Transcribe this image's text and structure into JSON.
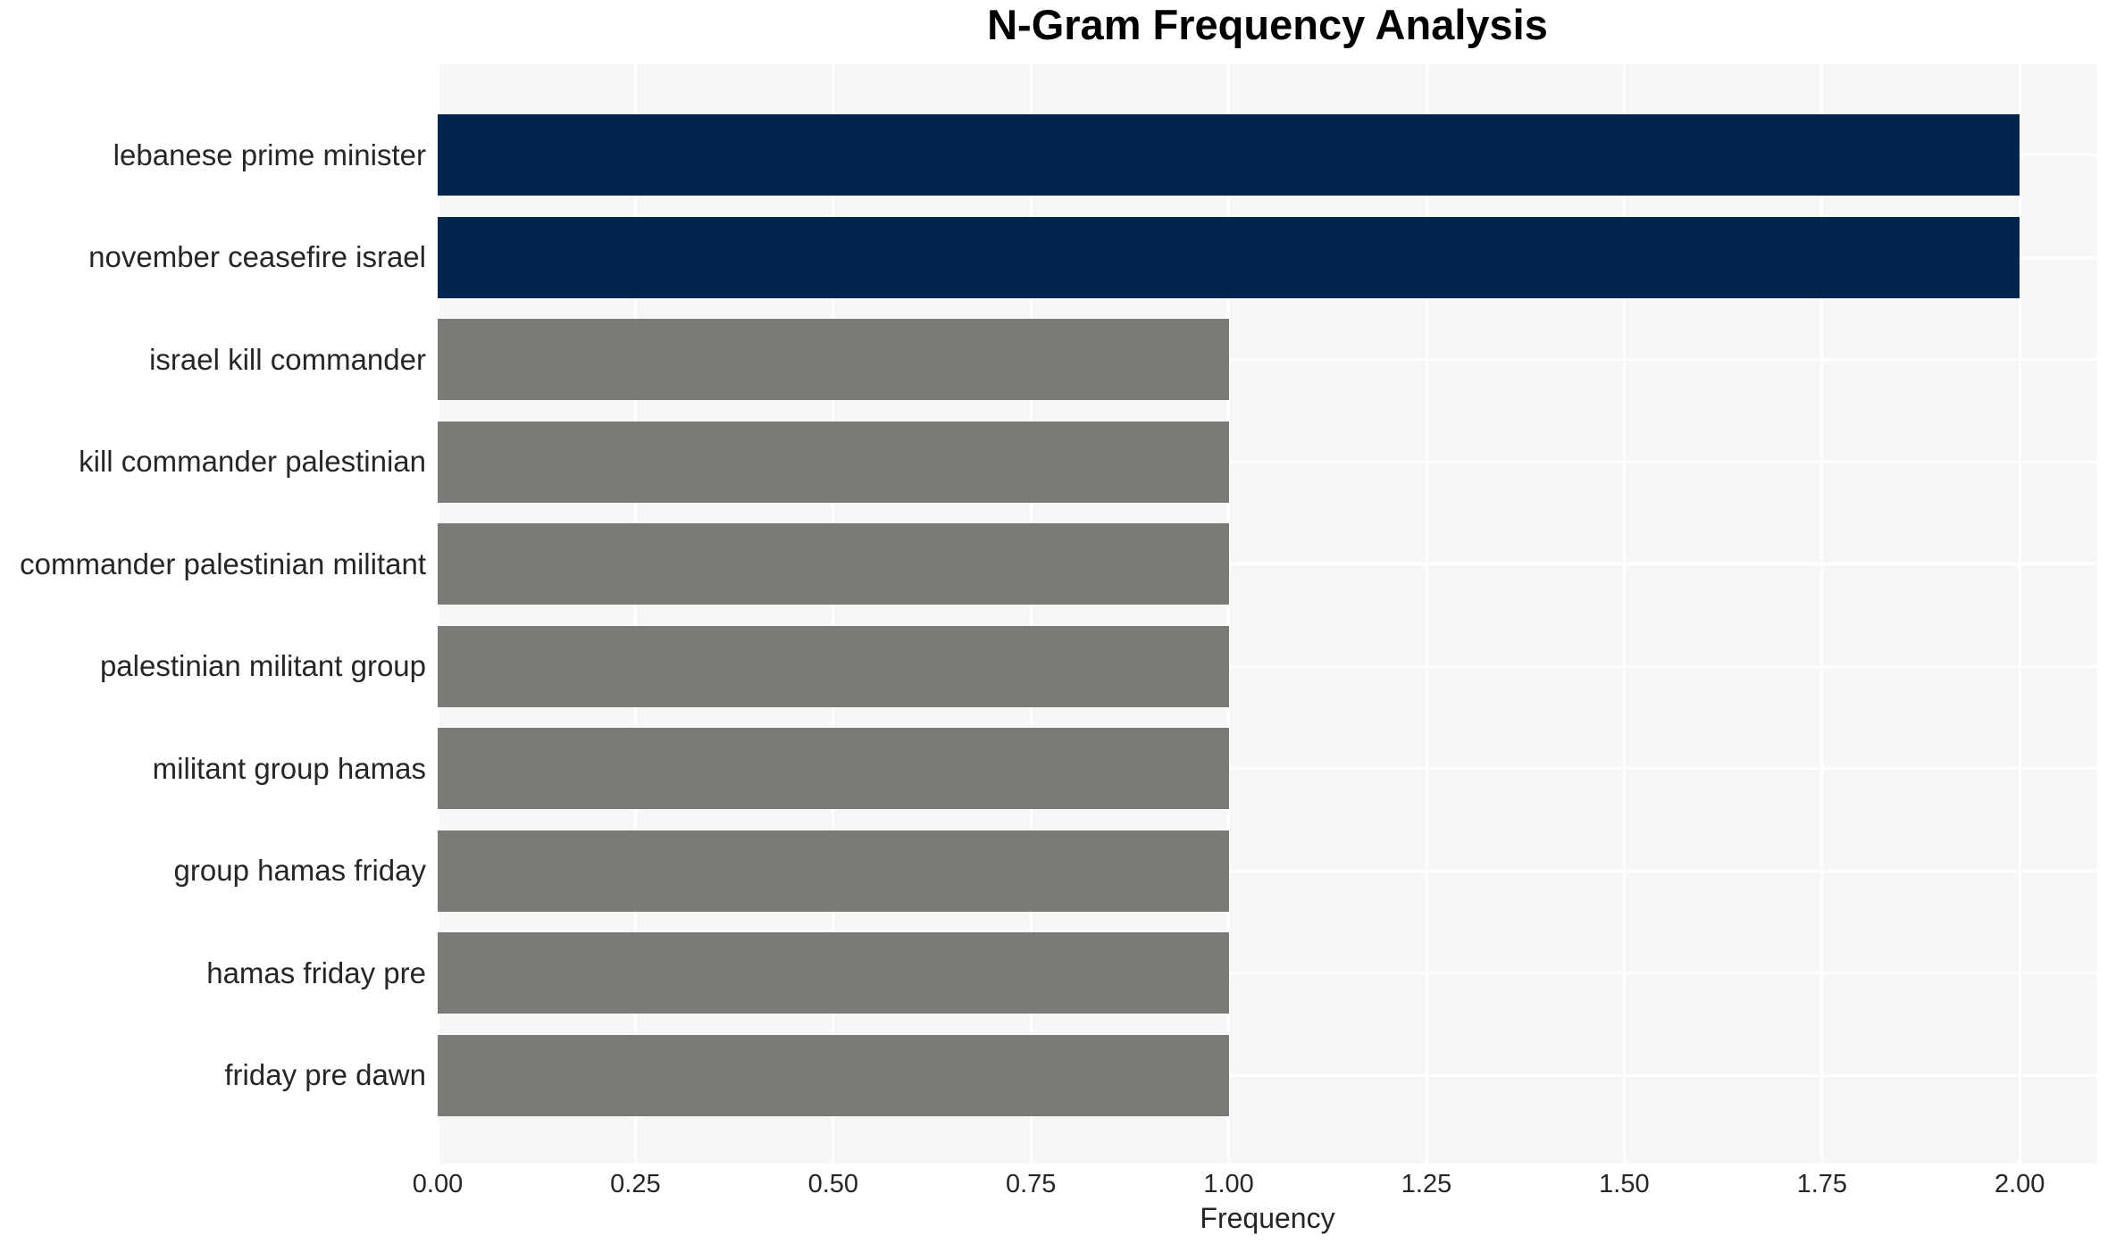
{
  "chart_data": {
    "type": "bar",
    "orientation": "horizontal",
    "title": "N-Gram Frequency Analysis",
    "xlabel": "Frequency",
    "ylabel": "",
    "categories": [
      "lebanese prime minister",
      "november ceasefire israel",
      "israel kill commander",
      "kill commander palestinian",
      "commander palestinian militant",
      "palestinian militant group",
      "militant group hamas",
      "group hamas friday",
      "hamas friday pre",
      "friday pre dawn"
    ],
    "values": [
      2,
      2,
      1,
      1,
      1,
      1,
      1,
      1,
      1,
      1
    ],
    "bar_colors": [
      "#02254e",
      "#02254e",
      "#7b7a77",
      "#7b7a77",
      "#7b7a77",
      "#7b7a77",
      "#7b7a77",
      "#7b7a77",
      "#7b7a77",
      "#7b7a77"
    ],
    "x_tick_labels": [
      "0.00",
      "0.25",
      "0.50",
      "0.75",
      "1.00",
      "1.25",
      "1.50",
      "1.75",
      "2.00"
    ],
    "x_tick_values": [
      0,
      0.25,
      0.5,
      0.75,
      1.0,
      1.25,
      1.5,
      1.75,
      2.0
    ],
    "xlim": [
      0,
      2.098
    ],
    "grid": true,
    "legend": false,
    "colors": {
      "plot_background": "#f7f7f7",
      "grid_color": "#ffffff",
      "text_color": "#262626",
      "title_color": "#000000",
      "high_frequency_bar": "#02254e",
      "low_frequency_bar": "#7b7a77"
    }
  }
}
